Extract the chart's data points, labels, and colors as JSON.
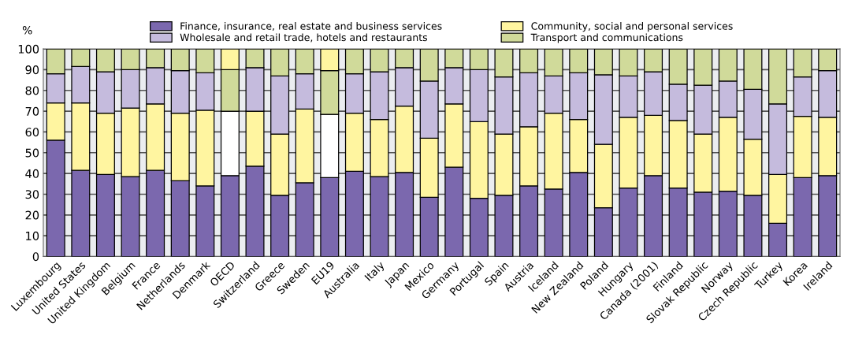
{
  "chart_data": {
    "type": "bar",
    "stacked": true,
    "ylabel": "%",
    "categories": [
      "Luxembourg",
      "United States",
      "United Kingdom",
      "Belgium",
      "France",
      "Netherlands",
      "Denmark",
      "OECD",
      "Switzerland",
      "Greece",
      "Sweden",
      "EU19",
      "Australia",
      "Italy",
      "Japan",
      "Mexico",
      "Germany",
      "Portugal",
      "Spain",
      "Austria",
      "Iceland",
      "New Zealand",
      "Poland",
      "Hungary",
      "Canada (2001)",
      "Finland",
      "Slovak Republic",
      "Norway",
      "Czech Republic",
      "Turkey",
      "Korea",
      "Ireland"
    ],
    "series": [
      {
        "name": "Finance, insurance, real estate and business services",
        "color": "#7b68ae",
        "values": [
          56,
          41.5,
          39.5,
          38.5,
          41.5,
          36.5,
          34,
          39,
          43.5,
          29.5,
          35.5,
          38,
          41,
          38.5,
          40.5,
          28.5,
          43,
          28,
          29.5,
          34,
          32.5,
          40.5,
          23.5,
          33,
          39,
          33,
          31,
          31.5,
          29.5,
          16,
          38,
          39
        ]
      },
      {
        "name": "Community, social and personal services",
        "color": "#fff5a0",
        "colors": [
          "#fff5a0",
          "#fff5a0",
          "#fff5a0",
          "#fff5a0",
          "#fff5a0",
          "#fff5a0",
          "#fff5a0",
          "#ffffff",
          "#fff5a0",
          "#fff5a0",
          "#fff5a0",
          "#ffffff",
          "#fff5a0",
          "#fff5a0",
          "#fff5a0",
          "#fff5a0",
          "#fff5a0",
          "#fff5a0",
          "#fff5a0",
          "#fff5a0",
          "#fff5a0",
          "#fff5a0",
          "#fff5a0",
          "#fff5a0",
          "#fff5a0",
          "#fff5a0",
          "#fff5a0",
          "#fff5a0",
          "#fff5a0",
          "#fff5a0",
          "#fff5a0",
          "#fff5a0"
        ],
        "values": [
          18,
          32.5,
          29.5,
          33,
          32,
          32.5,
          36.5,
          31,
          26.5,
          29.5,
          35.5,
          30.5,
          28,
          27.5,
          32,
          28.5,
          30.5,
          37,
          29.5,
          28.5,
          36.5,
          25.5,
          30.5,
          34,
          29,
          32.5,
          28,
          35.5,
          27,
          23.5,
          29.5,
          28
        ]
      },
      {
        "name": "Wholesale and retail trade, hotels and restaurants",
        "color": "#c5bbdd",
        "colors": [
          "#c5bbdd",
          "#c5bbdd",
          "#c5bbdd",
          "#c5bbdd",
          "#c5bbdd",
          "#c5bbdd",
          "#c5bbdd",
          "#d0da9a",
          "#c5bbdd",
          "#c5bbdd",
          "#c5bbdd",
          "#d0da9a",
          "#c5bbdd",
          "#c5bbdd",
          "#c5bbdd",
          "#c5bbdd",
          "#c5bbdd",
          "#c5bbdd",
          "#c5bbdd",
          "#c5bbdd",
          "#c5bbdd",
          "#c5bbdd",
          "#c5bbdd",
          "#c5bbdd",
          "#c5bbdd",
          "#c5bbdd",
          "#c5bbdd",
          "#c5bbdd",
          "#c5bbdd",
          "#c5bbdd",
          "#c5bbdd",
          "#c5bbdd"
        ],
        "values": [
          14,
          17.5,
          20,
          18.5,
          17.5,
          20.5,
          18,
          20,
          21,
          28,
          17,
          21,
          19,
          23,
          18.5,
          27.5,
          17.5,
          25,
          27.5,
          26,
          18,
          22.5,
          33.5,
          20,
          21,
          17.5,
          23.5,
          17.5,
          24,
          34,
          19,
          22.5
        ]
      },
      {
        "name": "Transport and communications",
        "color": "#d0da9a",
        "colors": [
          "#d0da9a",
          "#d0da9a",
          "#d0da9a",
          "#d0da9a",
          "#d0da9a",
          "#d0da9a",
          "#d0da9a",
          "#fff5a0",
          "#d0da9a",
          "#d0da9a",
          "#d0da9a",
          "#fff5a0",
          "#d0da9a",
          "#d0da9a",
          "#d0da9a",
          "#d0da9a",
          "#d0da9a",
          "#d0da9a",
          "#d0da9a",
          "#d0da9a",
          "#d0da9a",
          "#d0da9a",
          "#d0da9a",
          "#d0da9a",
          "#d0da9a",
          "#d0da9a",
          "#d0da9a",
          "#d0da9a",
          "#d0da9a",
          "#d0da9a",
          "#d0da9a",
          "#d0da9a"
        ],
        "values": [
          12,
          8.5,
          11,
          10,
          9,
          10.5,
          11.5,
          10,
          9,
          13,
          12,
          10.5,
          12,
          11,
          9,
          15.5,
          9,
          10,
          13.5,
          11.5,
          13,
          11.5,
          12.5,
          13,
          11,
          17,
          17.5,
          15.5,
          19.5,
          26.5,
          13.5,
          10.5
        ]
      }
    ],
    "ylim": [
      0,
      100
    ],
    "yticks": [
      0,
      10,
      20,
      30,
      40,
      50,
      60,
      70,
      80,
      90,
      100
    ],
    "grid": "y",
    "legend": "top"
  }
}
